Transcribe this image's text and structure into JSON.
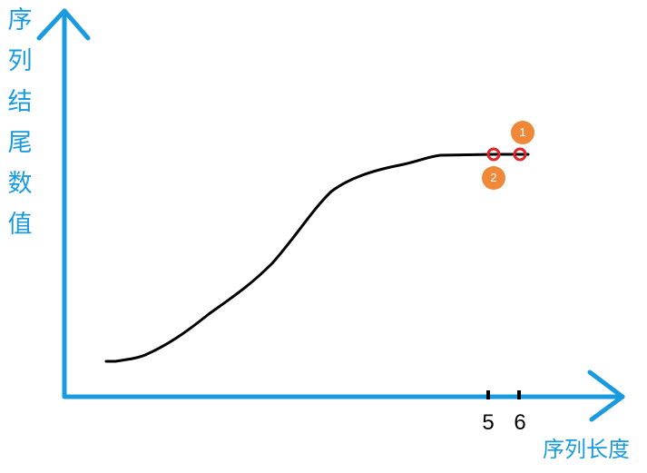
{
  "axes": {
    "y_label": "序列结尾数值",
    "x_label": "序列长度",
    "color": "#1a9be0"
  },
  "ticks": [
    {
      "label": "5"
    },
    {
      "label": "6"
    }
  ],
  "markers": [
    {
      "badge": "2"
    },
    {
      "badge": "1"
    }
  ],
  "curve": {
    "color": "#000000",
    "description_shape": "sigmoid rising then flat"
  },
  "marker_color": "#e0232a",
  "badge_color": "#f0883a"
}
